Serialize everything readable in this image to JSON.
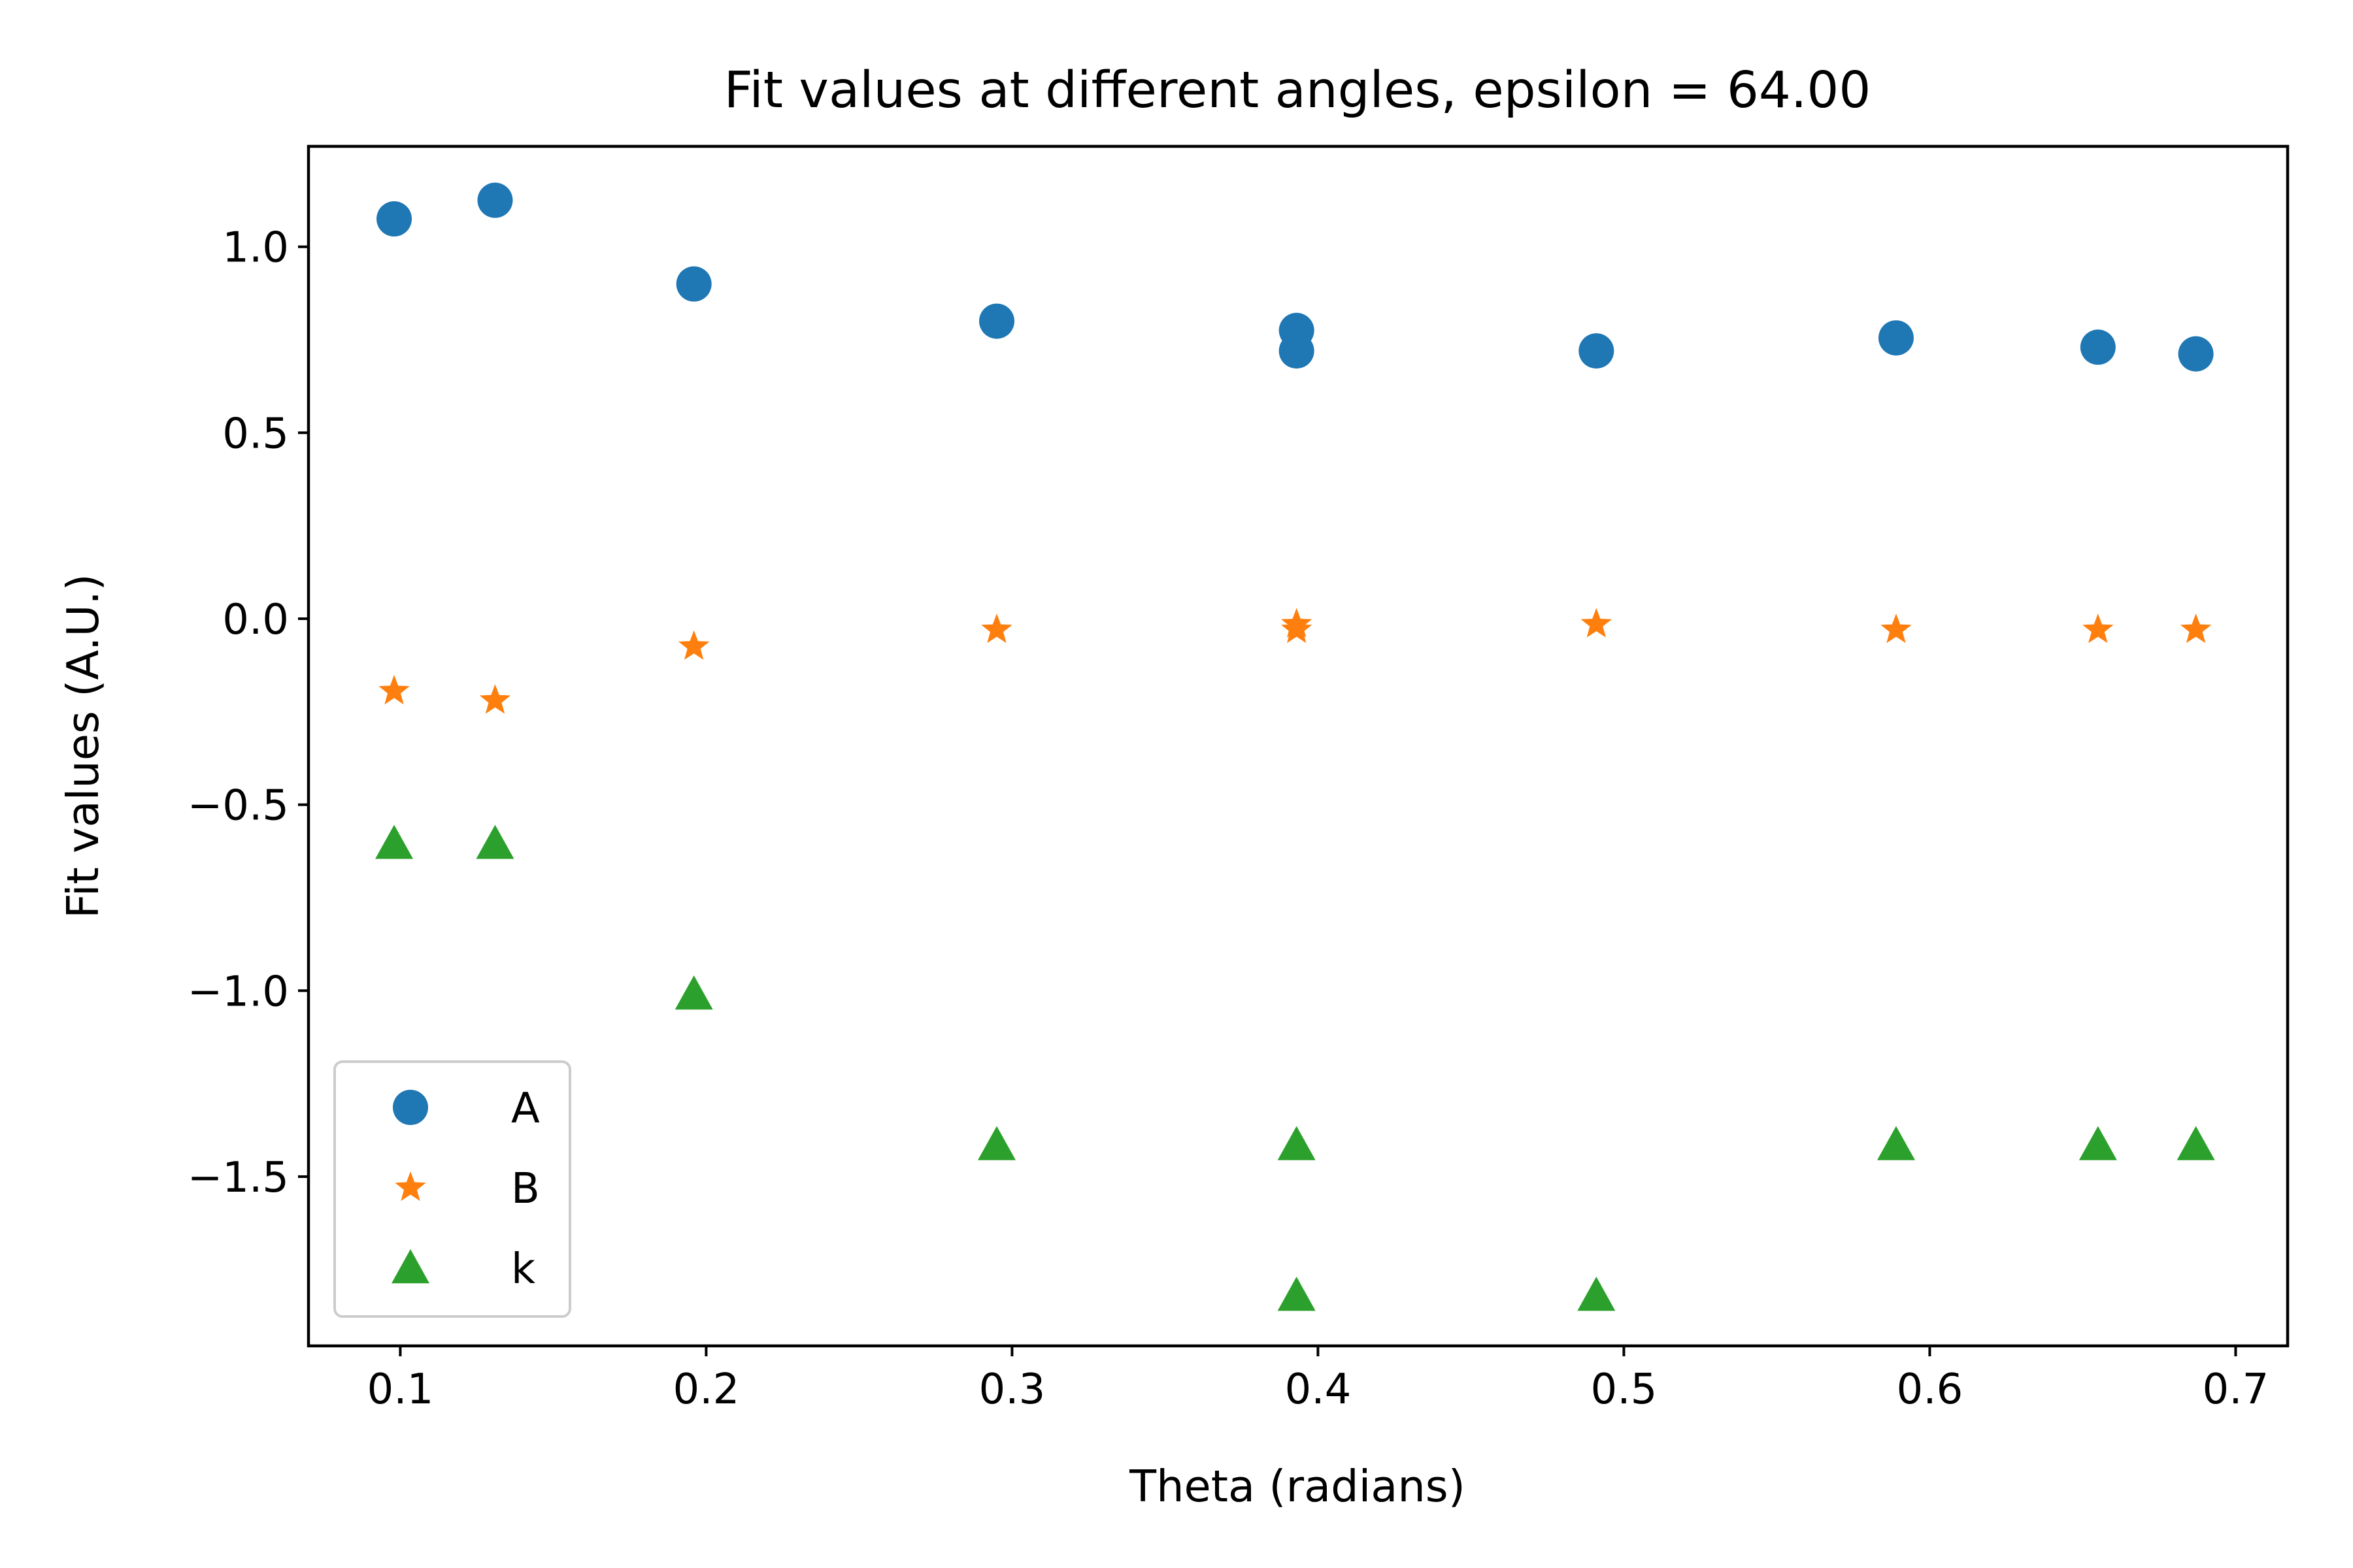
{
  "chart_data": {
    "type": "scatter",
    "title": "Fit values at different angles, epsilon = 64.00",
    "xlabel": "Theta (radians)",
    "ylabel": "Fit values (A.U.)",
    "xlim": [
      0.07,
      0.717
    ],
    "ylim": [
      -1.955,
      1.27
    ],
    "xticks": [
      0.1,
      0.2,
      0.3,
      0.4,
      0.5,
      0.6,
      0.7
    ],
    "xtick_labels": [
      "0.1",
      "0.2",
      "0.3",
      "0.4",
      "0.5",
      "0.6",
      "0.7"
    ],
    "yticks": [
      1.0,
      0.5,
      0.0,
      -0.5,
      -1.0,
      -1.5
    ],
    "ytick_labels": [
      "1.0",
      "0.5",
      "0.0",
      "−0.5",
      "−1.0",
      "−1.5"
    ],
    "grid": false,
    "legend_position": "lower-left",
    "series": [
      {
        "name": "A",
        "marker": "circle",
        "color": "#1f77b4",
        "points": [
          [
            0.098,
            1.075
          ],
          [
            0.131,
            1.125
          ],
          [
            0.196,
            0.9
          ],
          [
            0.295,
            0.8
          ],
          [
            0.393,
            0.775
          ],
          [
            0.393,
            0.72
          ],
          [
            0.491,
            0.72
          ],
          [
            0.589,
            0.755
          ],
          [
            0.655,
            0.73
          ],
          [
            0.687,
            0.712
          ]
        ]
      },
      {
        "name": "B",
        "marker": "star",
        "color": "#ff7f0e",
        "points": [
          [
            0.098,
            -0.195
          ],
          [
            0.131,
            -0.22
          ],
          [
            0.196,
            -0.075
          ],
          [
            0.295,
            -0.03
          ],
          [
            0.393,
            -0.015
          ],
          [
            0.393,
            -0.03
          ],
          [
            0.491,
            -0.015
          ],
          [
            0.589,
            -0.03
          ],
          [
            0.655,
            -0.03
          ],
          [
            0.687,
            -0.03
          ]
        ]
      },
      {
        "name": "k",
        "marker": "triangle",
        "color": "#2ca02c",
        "points": [
          [
            0.098,
            -0.605
          ],
          [
            0.131,
            -0.605
          ],
          [
            0.196,
            -1.01
          ],
          [
            0.295,
            -1.415
          ],
          [
            0.393,
            -1.415
          ],
          [
            0.393,
            -1.82
          ],
          [
            0.491,
            -1.82
          ],
          [
            0.589,
            -1.415
          ],
          [
            0.655,
            -1.415
          ],
          [
            0.687,
            -1.415
          ]
        ]
      }
    ]
  }
}
